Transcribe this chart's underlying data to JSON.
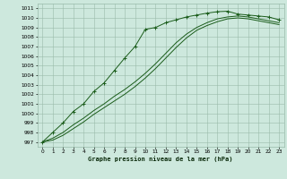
{
  "background_color": "#cde8dd",
  "grid_color": "#99bbaa",
  "line_color": "#1a5c1a",
  "xlabel": "Graphe pression niveau de la mer (hPa)",
  "xlim": [
    -0.5,
    23.5
  ],
  "ylim": [
    996.5,
    1011.5
  ],
  "yticks": [
    997,
    998,
    999,
    1000,
    1001,
    1002,
    1003,
    1004,
    1005,
    1006,
    1007,
    1008,
    1009,
    1010,
    1011
  ],
  "xticks": [
    0,
    1,
    2,
    3,
    4,
    5,
    6,
    7,
    8,
    9,
    10,
    11,
    12,
    13,
    14,
    15,
    16,
    17,
    18,
    19,
    20,
    21,
    22,
    23
  ],
  "series": [
    {
      "x": [
        0,
        1,
        2,
        3,
        4,
        5,
        6,
        7,
        8,
        9,
        10,
        11,
        12,
        13,
        14,
        15,
        16,
        17,
        18,
        19,
        20,
        21,
        22,
        23
      ],
      "y": [
        997.0,
        998.0,
        999.0,
        1000.2,
        1001.0,
        1002.3,
        1003.2,
        1004.5,
        1005.8,
        1007.0,
        1008.8,
        1009.0,
        1009.5,
        1009.8,
        1010.1,
        1010.3,
        1010.5,
        1010.65,
        1010.7,
        1010.4,
        1010.3,
        1010.2,
        1010.1,
        1009.8
      ],
      "has_markers": true
    },
    {
      "x": [
        0,
        1,
        2,
        3,
        4,
        5,
        6,
        7,
        8,
        9,
        10,
        11,
        12,
        13,
        14,
        15,
        16,
        17,
        18,
        19,
        20,
        21,
        22,
        23
      ],
      "y": [
        997.0,
        997.4,
        998.0,
        998.8,
        999.5,
        1000.3,
        1001.0,
        1001.8,
        1002.5,
        1003.3,
        1004.2,
        1005.2,
        1006.3,
        1007.4,
        1008.3,
        1009.0,
        1009.5,
        1009.9,
        1010.1,
        1010.2,
        1010.1,
        1009.9,
        1009.7,
        1009.5
      ],
      "has_markers": false
    },
    {
      "x": [
        0,
        1,
        2,
        3,
        4,
        5,
        6,
        7,
        8,
        9,
        10,
        11,
        12,
        13,
        14,
        15,
        16,
        17,
        18,
        19,
        20,
        21,
        22,
        23
      ],
      "y": [
        997.0,
        997.2,
        997.7,
        998.4,
        999.1,
        999.9,
        1000.6,
        1001.3,
        1002.0,
        1002.8,
        1003.7,
        1004.7,
        1005.8,
        1006.9,
        1007.9,
        1008.7,
        1009.2,
        1009.6,
        1009.9,
        1010.0,
        1009.9,
        1009.7,
        1009.5,
        1009.3
      ],
      "has_markers": false
    }
  ]
}
